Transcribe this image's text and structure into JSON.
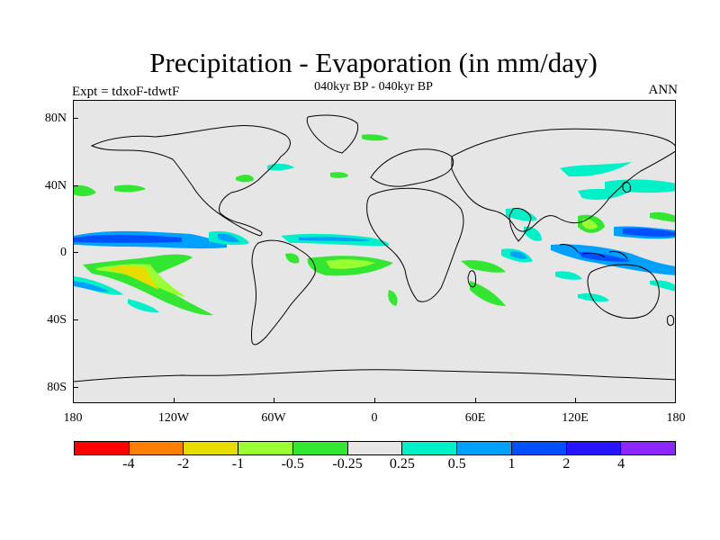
{
  "title": "Precipitation - Evaporation (in mm/day)",
  "subtitle": "040kyr BP - 040kyr BP",
  "left_label": "Expt = tdxoF-tdwtF",
  "right_label": "ANN",
  "axes": {
    "lat_labels": [
      "80N",
      "40N",
      "0",
      "40S",
      "80S"
    ],
    "lon_labels": [
      "180",
      "120W",
      "60W",
      "0",
      "60E",
      "120E",
      "180"
    ]
  },
  "legend": {
    "colors": [
      "#ff0000",
      "#ff8000",
      "#e6dc00",
      "#9aff32",
      "#32e632",
      "#e6e6e6",
      "#00f0c8",
      "#00a0ff",
      "#0050ff",
      "#2814ff",
      "#8c28ff"
    ],
    "labels": [
      "-4",
      "-2",
      "-1",
      "-0.5",
      "-0.25",
      "0.25",
      "0.5",
      "1",
      "2",
      "4"
    ]
  },
  "colors": {
    "background": "#e6e6e6",
    "coastline": "#000000"
  }
}
